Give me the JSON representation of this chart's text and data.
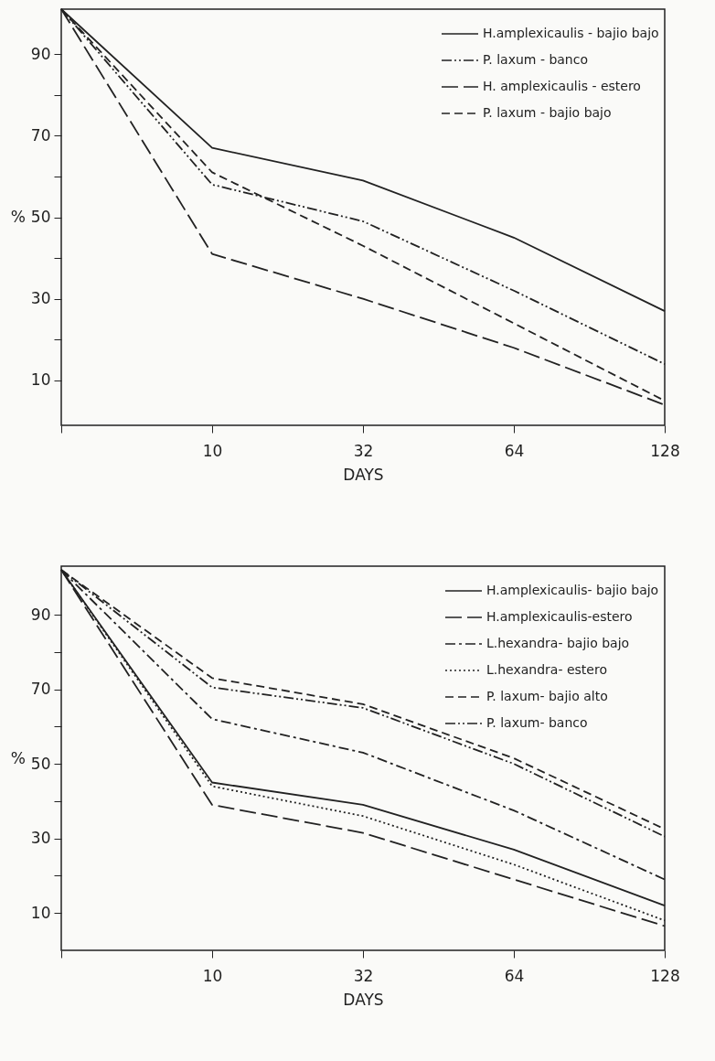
{
  "chart_data": [
    {
      "type": "line",
      "xlabel": "DAYS",
      "ylabel": "%",
      "categories": [
        null,
        "10",
        "32",
        "64",
        "128"
      ],
      "ylim": [
        -1,
        101
      ],
      "yticks": [
        10,
        {
          "value": 20,
          "label": null
        },
        30,
        {
          "value": 40,
          "label": null
        },
        50,
        {
          "value": 60,
          "label": null
        },
        70,
        {
          "value": 80,
          "label": null
        },
        90
      ],
      "legend": "top right",
      "grid": false,
      "marker": "none",
      "series": [
        {
          "name": "H.amplexicaulis - bajio bajo",
          "color": "#222222",
          "line_style": "solid",
          "values": [
            101,
            67,
            59,
            45,
            27
          ]
        },
        {
          "name": "P. laxum - banco",
          "color": "#222222",
          "line_style": "dashdotdot",
          "values": [
            101,
            58,
            49,
            32,
            14
          ]
        },
        {
          "name": "H. amplexicaulis - estero",
          "color": "#222222",
          "line_style": "longdash",
          "values": [
            101,
            41,
            30,
            18,
            4
          ]
        },
        {
          "name": "P. laxum - bajio bajo",
          "color": "#222222",
          "line_style": "dashed",
          "values": [
            101,
            61,
            43,
            24,
            5
          ]
        }
      ]
    },
    {
      "type": "line",
      "xlabel": "DAYS",
      "ylabel": "%",
      "categories": [
        null,
        "10",
        "32",
        "64",
        "128"
      ],
      "ylim": [
        0,
        103
      ],
      "yticks": [
        10,
        {
          "value": 20,
          "label": null
        },
        30,
        {
          "value": 40,
          "label": null
        },
        50,
        {
          "value": 60,
          "label": null
        },
        70,
        {
          "value": 80,
          "label": null
        },
        90
      ],
      "legend": "top right",
      "grid": false,
      "marker": "none",
      "series": [
        {
          "name": "H.amplexicaulis- bajio bajo",
          "color": "#222222",
          "line_style": "solid",
          "values": [
            102,
            45,
            39,
            27,
            12
          ]
        },
        {
          "name": "H.amplexicaulis-estero",
          "color": "#222222",
          "line_style": "longdash",
          "values": [
            102,
            39,
            31.5,
            19,
            6.5
          ]
        },
        {
          "name": "L.hexandra- bajio bajo",
          "color": "#222222",
          "line_style": "dashdot",
          "values": [
            102,
            62,
            53,
            37.5,
            19
          ]
        },
        {
          "name": "L.hexandra- estero",
          "color": "#222222",
          "line_style": "dotted",
          "values": [
            102,
            44,
            36,
            23,
            8
          ]
        },
        {
          "name": "P. laxum- bajio alto",
          "color": "#222222",
          "line_style": "dashed",
          "values": [
            102,
            73,
            66,
            51.5,
            32.5
          ]
        },
        {
          "name": "P. laxum- banco",
          "color": "#222222",
          "line_style": "dashdotdot",
          "values": [
            102,
            70.5,
            65,
            50,
            30.5
          ]
        }
      ]
    }
  ]
}
